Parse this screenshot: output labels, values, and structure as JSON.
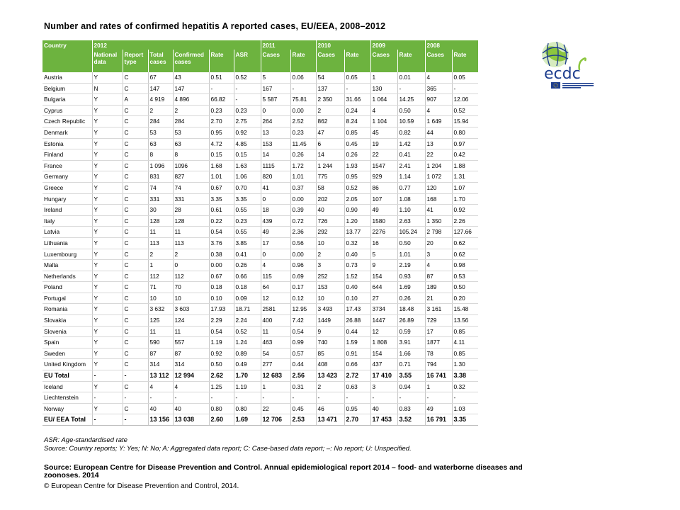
{
  "title": "Number  and rates of confirmed  hepatitis A reported cases, EU/EEA,  2008–2012",
  "logo": {
    "text": "ecdc",
    "subtitle": "EUROPEAN CENTRE FOR DISEASE PREVENTION AND CONTROL"
  },
  "header": {
    "country": "Country",
    "years": [
      "2012",
      "2011",
      "2010",
      "2009",
      "2008"
    ],
    "sub": [
      "National data",
      "Report type",
      "Total cases",
      "Confirmed cases",
      "Rate",
      "ASR",
      "Cases",
      "Rate",
      "Cases",
      "Rate",
      "Cases",
      "Rate",
      "Cases",
      "Rate"
    ]
  },
  "rows": [
    [
      "Austria",
      "Y",
      "C",
      "67",
      "43",
      "0.51",
      "0.52",
      "5",
      "0.06",
      "54",
      "0.65",
      "1",
      "0.01",
      "4",
      "0.05"
    ],
    [
      "Belgium",
      "N",
      "C",
      "147",
      "147",
      "-",
      "-",
      "167",
      "-",
      "137",
      "-",
      "130",
      "-",
      "365",
      "-"
    ],
    [
      "Bulgaria",
      "Y",
      "A",
      "4 919",
      "4 896",
      "66.82",
      "-",
      "5 587",
      "75.81",
      "2 350",
      "31.66",
      "1 064",
      "14.25",
      "907",
      "12.06"
    ],
    [
      "Cyprus",
      "Y",
      "C",
      "2",
      "2",
      "0.23",
      "0.23",
      "0",
      "0.00",
      "2",
      "0.24",
      "4",
      "0.50",
      "4",
      "0.52"
    ],
    [
      "Czech Republic",
      "Y",
      "C",
      "284",
      "284",
      "2.70",
      "2.75",
      "264",
      "2.52",
      "862",
      "8.24",
      "1 104",
      "10.59",
      "1 649",
      "15.94"
    ],
    [
      "Denmark",
      "Y",
      "C",
      "53",
      "53",
      "0.95",
      "0.92",
      "13",
      "0.23",
      "47",
      "0.85",
      "45",
      "0.82",
      "44",
      "0.80"
    ],
    [
      "Estonia",
      "Y",
      "C",
      "63",
      "63",
      "4.72",
      "4.85",
      "153",
      "11.45",
      "6",
      "0.45",
      "19",
      "1.42",
      "13",
      "0.97"
    ],
    [
      "Finland",
      "Y",
      "C",
      "8",
      "8",
      "0.15",
      "0.15",
      "14",
      "0.26",
      "14",
      "0.26",
      "22",
      "0.41",
      "22",
      "0.42"
    ],
    [
      "France",
      "Y",
      "C",
      "1 096",
      "1096",
      "1.68",
      "1.63",
      "1115",
      "1.72",
      "1 244",
      "1.93",
      "1547",
      "2.41",
      "1 204",
      "1.88"
    ],
    [
      "Germany",
      "Y",
      "C",
      "831",
      "827",
      "1.01",
      "1.06",
      "820",
      "1.01",
      "775",
      "0.95",
      "929",
      "1.14",
      "1 072",
      "1.31"
    ],
    [
      "Greece",
      "Y",
      "C",
      "74",
      "74",
      "0.67",
      "0.70",
      "41",
      "0.37",
      "58",
      "0.52",
      "86",
      "0.77",
      "120",
      "1.07"
    ],
    [
      "Hungary",
      "Y",
      "C",
      "331",
      "331",
      "3.35",
      "3.35",
      "0",
      "0.00",
      "202",
      "2.05",
      "107",
      "1.08",
      "168",
      "1.70"
    ],
    [
      "Ireland",
      "Y",
      "C",
      "30",
      "28",
      "0.61",
      "0.55",
      "18",
      "0.39",
      "40",
      "0.90",
      "49",
      "1.10",
      "41",
      "0.92"
    ],
    [
      "Italy",
      "Y",
      "C",
      "128",
      "128",
      "0.22",
      "0.23",
      "439",
      "0.72",
      "726",
      "1.20",
      "1580",
      "2.63",
      "1 350",
      "2.26"
    ],
    [
      "Latvia",
      "Y",
      "C",
      "11",
      "11",
      "0.54",
      "0.55",
      "49",
      "2.36",
      "292",
      "13.77",
      "2276",
      "105.24",
      "2 798",
      "127.66"
    ],
    [
      "Lithuania",
      "Y",
      "C",
      "113",
      "113",
      "3.76",
      "3.85",
      "17",
      "0.56",
      "10",
      "0.32",
      "16",
      "0.50",
      "20",
      "0.62"
    ],
    [
      "Luxembourg",
      "Y",
      "C",
      "2",
      "2",
      "0.38",
      "0.41",
      "0",
      "0.00",
      "2",
      "0.40",
      "5",
      "1.01",
      "3",
      "0.62"
    ],
    [
      "Malta",
      "Y",
      "C",
      "1",
      "0",
      "0.00",
      "0.26",
      "4",
      "0.96",
      "3",
      "0.73",
      "9",
      "2.19",
      "4",
      "0.98"
    ],
    [
      "Netherlands",
      "Y",
      "C",
      "112",
      "112",
      "0.67",
      "0.66",
      "115",
      "0.69",
      "252",
      "1.52",
      "154",
      "0.93",
      "87",
      "0.53"
    ],
    [
      "Poland",
      "Y",
      "C",
      "71",
      "70",
      "0.18",
      "0.18",
      "64",
      "0.17",
      "153",
      "0.40",
      "644",
      "1.69",
      "189",
      "0.50"
    ],
    [
      "Portugal",
      "Y",
      "C",
      "10",
      "10",
      "0.10",
      "0.09",
      "12",
      "0.12",
      "10",
      "0.10",
      "27",
      "0.26",
      "21",
      "0.20"
    ],
    [
      "Romania",
      "Y",
      "C",
      "3 632",
      "3 603",
      "17.93",
      "18.71",
      "2581",
      "12.95",
      "3 493",
      "17.43",
      "3734",
      "18.48",
      "3 161",
      "15.48"
    ],
    [
      "Slovakia",
      "Y",
      "C",
      "125",
      "124",
      "2.29",
      "2.24",
      "400",
      "7.42",
      "1449",
      "26.88",
      "1447",
      "26.89",
      "729",
      "13.56"
    ],
    [
      "Slovenia",
      "Y",
      "C",
      "11",
      "11",
      "0.54",
      "0.52",
      "11",
      "0.54",
      "9",
      "0.44",
      "12",
      "0.59",
      "17",
      "0.85"
    ],
    [
      "Spain",
      "Y",
      "C",
      "590",
      "557",
      "1.19",
      "1.24",
      "463",
      "0.99",
      "740",
      "1.59",
      "1 808",
      "3.91",
      "1877",
      "4.11"
    ],
    [
      "Sweden",
      "Y",
      "C",
      "87",
      "87",
      "0.92",
      "0.89",
      "54",
      "0.57",
      "85",
      "0.91",
      "154",
      "1.66",
      "78",
      "0.85"
    ],
    [
      "United Kingdom",
      "Y",
      "C",
      "314",
      "314",
      "0.50",
      "0.49",
      "277",
      "0.44",
      "408",
      "0.66",
      "437",
      "0.71",
      "794",
      "1.30"
    ],
    [
      "EU Total",
      "-",
      "-",
      "13 112",
      "12 994",
      "2.62",
      "1.70",
      "12 683",
      "2.56",
      "13 423",
      "2.72",
      "17 410",
      "3.55",
      "16 741",
      "3.38"
    ],
    [
      "Iceland",
      "Y",
      "C",
      "4",
      "4",
      "1.25",
      "1.19",
      "1",
      "0.31",
      "2",
      "0.63",
      "3",
      "0.94",
      "1",
      "0.32"
    ],
    [
      "Liechtenstein",
      "-",
      "-",
      "-",
      "-",
      "-",
      "-",
      "-",
      "-",
      "-",
      "-",
      "-",
      "-",
      "-",
      "-"
    ],
    [
      "Norway",
      "Y",
      "C",
      "40",
      "40",
      "0.80",
      "0.80",
      "22",
      "0.45",
      "46",
      "0.95",
      "40",
      "0.83",
      "49",
      "1.03"
    ],
    [
      "EU/ EEA Total",
      "-",
      "-",
      "13 156",
      "13 038",
      "2.60",
      "1.69",
      "12 706",
      "2.53",
      "13 471",
      "2.70",
      "17 453",
      "3.52",
      "16 791",
      "3.35"
    ]
  ],
  "bold_rows": [
    "EU Total",
    "EU/ EEA Total"
  ],
  "notes": {
    "asr": "ASR:  Age-standardised rate",
    "legend": "Source: Country reports; Y: Yes; N: No; A: Aggregated data report; C: Case-based data report; –: No report; U: Unspecified."
  },
  "source": "Source: European Centre for Disease Prevention and Control.  Annual epidemiological report 2014 – food- and waterborne diseases and zoonoses.  2014",
  "copyright": "© European Centre for Disease Prevention and Control, 2014.",
  "colors": {
    "header_green": "#6db33f",
    "logo_blue": "#1f3f8f",
    "logo_green": "#8cc63f"
  }
}
